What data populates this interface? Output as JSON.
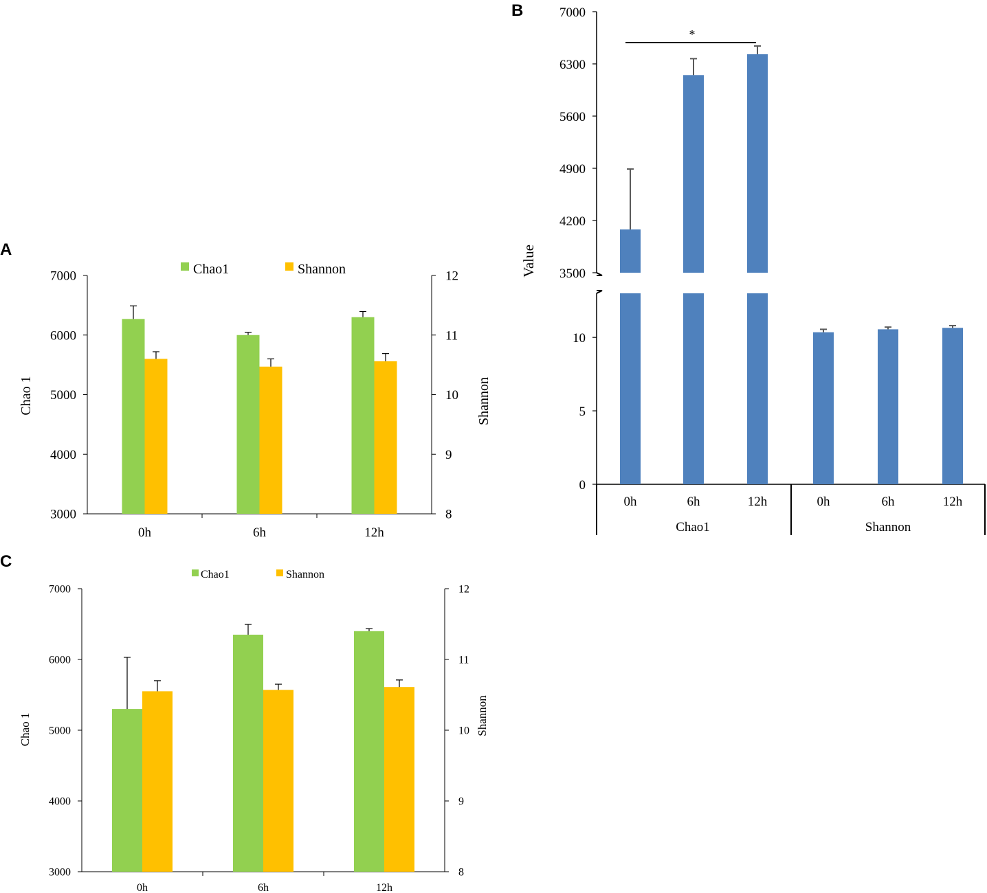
{
  "colors": {
    "chao1": "#92d050",
    "shannon": "#ffc000",
    "value_bar": "#4f81bd",
    "axis": "#000000",
    "error_bar": "#000000",
    "error_bar_b": "#595959"
  },
  "chart_data": [
    {
      "panel": "A",
      "type": "bar",
      "categories": [
        "0h",
        "6h",
        "12h"
      ],
      "series": [
        {
          "name": "Chao1",
          "axis": "left",
          "values": [
            6270,
            6000,
            6300
          ],
          "errors": [
            220,
            45,
            95
          ]
        },
        {
          "name": "Shannon",
          "axis": "right",
          "values": [
            10.6,
            10.47,
            10.56
          ],
          "errors": [
            0.12,
            0.13,
            0.13
          ]
        }
      ],
      "ylabel": "Chao 1",
      "ylabel_right": "Shannon",
      "ylim": [
        3000,
        7000
      ],
      "ylim_right": [
        8,
        12
      ],
      "yticks": [
        "3000",
        "4000",
        "5000",
        "6000",
        "7000"
      ],
      "yticks_right": [
        "8",
        "9",
        "10",
        "11",
        "12"
      ],
      "legend": [
        "Chao1",
        "Shannon"
      ],
      "legend_position": "top-center"
    },
    {
      "panel": "B",
      "type": "bar",
      "categories": [
        "0h",
        "6h",
        "12h",
        "0h",
        "6h",
        "12h"
      ],
      "groups": [
        "Chao1",
        "Shannon"
      ],
      "values": [
        4080,
        6150,
        6430,
        10.35,
        10.55,
        10.65
      ],
      "errors": [
        810,
        220,
        110,
        0.2,
        0.15,
        0.15
      ],
      "ylabel": "Value",
      "axis_break": true,
      "ylim_lower": [
        0,
        13
      ],
      "ylim_upper": [
        3500,
        7000
      ],
      "yticks_lower": [
        "0",
        "5",
        "10"
      ],
      "yticks_upper": [
        "3500",
        "4200",
        "4900",
        "5600",
        "6300",
        "7000"
      ],
      "significance": {
        "from": "0h",
        "to": "12h",
        "group": "Chao1",
        "label": "*"
      }
    },
    {
      "panel": "C",
      "type": "bar",
      "categories": [
        "0h",
        "6h",
        "12h"
      ],
      "series": [
        {
          "name": "Chao1",
          "axis": "left",
          "values": [
            5300,
            6350,
            6400
          ],
          "errors": [
            730,
            145,
            35
          ]
        },
        {
          "name": "Shannon",
          "axis": "right",
          "values": [
            10.55,
            10.57,
            10.61
          ],
          "errors": [
            0.15,
            0.08,
            0.1
          ]
        }
      ],
      "ylabel": "Chao 1",
      "ylabel_right": "Shannon",
      "ylim": [
        3000,
        7000
      ],
      "ylim_right": [
        8,
        12
      ],
      "yticks": [
        "3000",
        "4000",
        "5000",
        "6000",
        "7000"
      ],
      "yticks_right": [
        "8",
        "9",
        "10",
        "11",
        "12"
      ],
      "legend": [
        "Chao1",
        "Shannon"
      ],
      "legend_position": "top-center"
    }
  ]
}
